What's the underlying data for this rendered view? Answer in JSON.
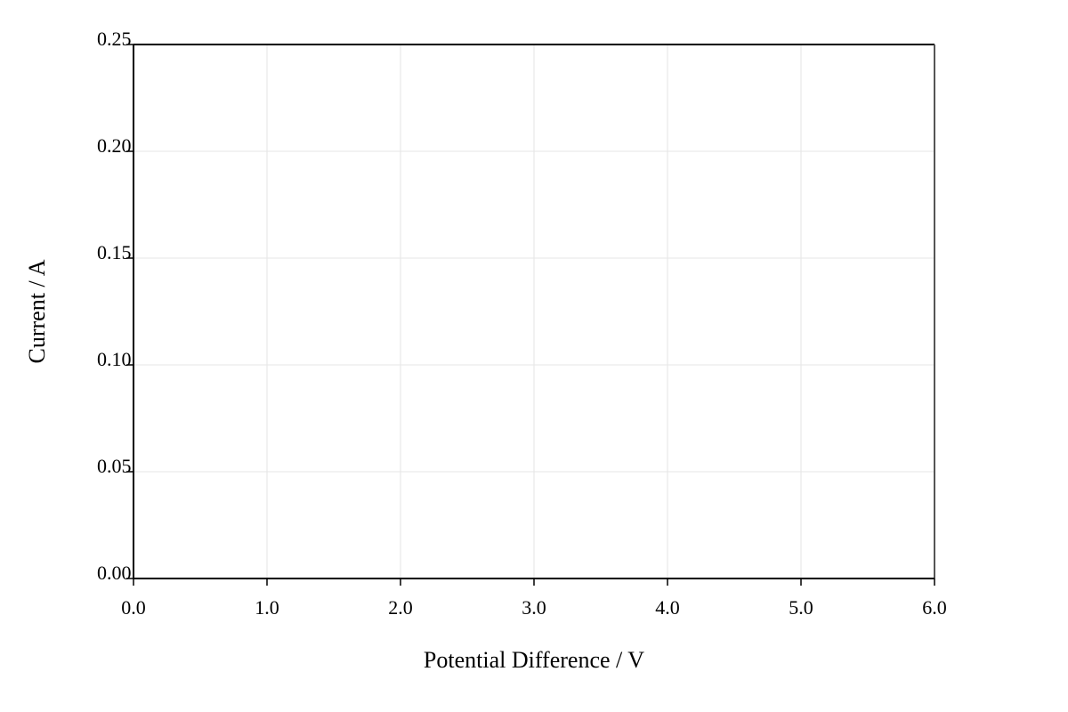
{
  "chart_data": {
    "type": "scatter",
    "x_label": "Potential Difference / V",
    "y_label": "Current / A",
    "xlim": [
      0,
      6
    ],
    "xticks": [
      {
        "value": 0,
        "label": "0.0"
      },
      {
        "value": 1,
        "label": "1.0"
      },
      {
        "value": 2,
        "label": "2.0"
      },
      {
        "value": 3,
        "label": "3.0"
      },
      {
        "value": 4,
        "label": "4.0"
      },
      {
        "value": 5,
        "label": "5.0"
      },
      {
        "value": 6,
        "label": "6.0"
      }
    ],
    "ylim": [
      0,
      0.25
    ],
    "yticks": [
      {
        "value": 0,
        "label": "0.00"
      },
      0.05,
      {
        "value": 0.1,
        "label": "0.10"
      },
      0.15,
      {
        "value": 0.2,
        "label": "0.20"
      },
      0.25
    ],
    "grid": true
  }
}
